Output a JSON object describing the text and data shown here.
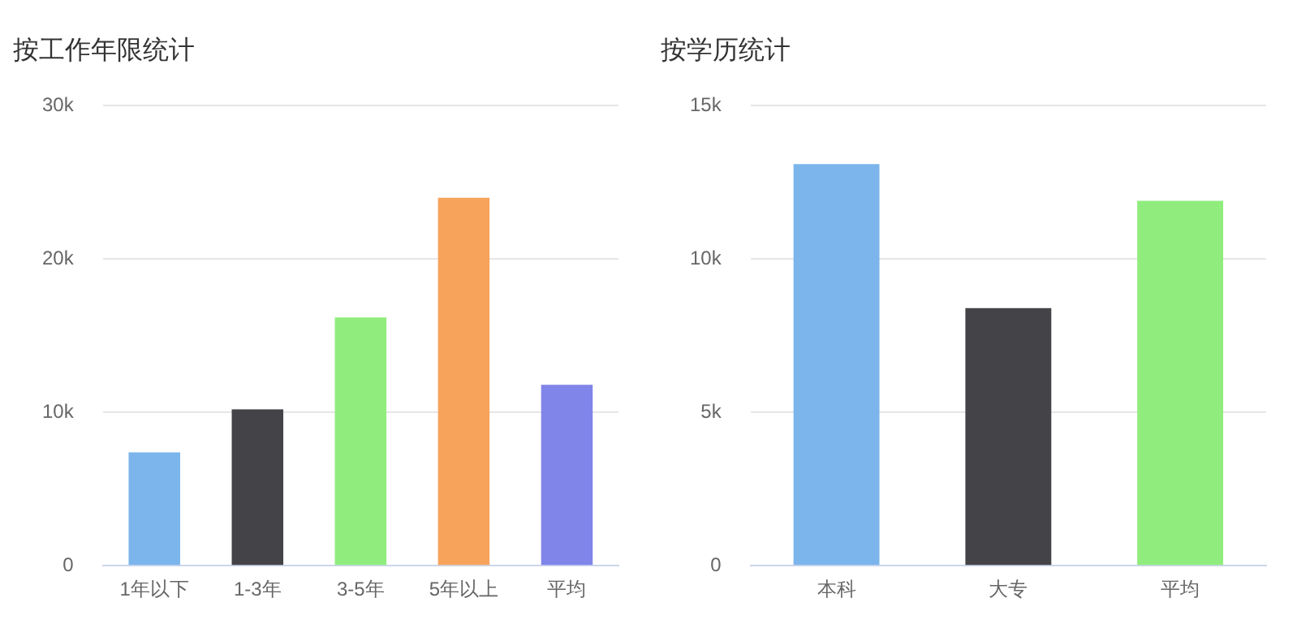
{
  "chart_data": [
    {
      "type": "bar",
      "title": "按工作年限统计",
      "categories": [
        "1年以下",
        "1-3年",
        "3-5年",
        "5年以上",
        "平均"
      ],
      "values": [
        7400,
        10200,
        16200,
        24000,
        11800
      ],
      "colors": [
        "#7cb5ec",
        "#434348",
        "#90ed7d",
        "#f7a35c",
        "#8085e9"
      ],
      "ylim": [
        0,
        30000
      ],
      "yticks": [
        0,
        {
          "value": 10000,
          "label": "10k"
        },
        {
          "value": 20000,
          "label": "20k"
        },
        {
          "value": 30000,
          "label": "30k"
        }
      ],
      "grid": "y",
      "legend": false
    },
    {
      "type": "bar",
      "title": "按学历统计",
      "categories": [
        "本科",
        "大专",
        "平均"
      ],
      "values": [
        13100,
        8400,
        11900
      ],
      "colors": [
        "#7cb5ec",
        "#434348",
        "#90ed7d"
      ],
      "ylim": [
        0,
        15000
      ],
      "yticks": [
        0,
        {
          "value": 5000,
          "label": "5k"
        },
        {
          "value": 10000,
          "label": "10k"
        },
        {
          "value": 15000,
          "label": "15k"
        }
      ],
      "grid": "y",
      "legend": false
    }
  ]
}
